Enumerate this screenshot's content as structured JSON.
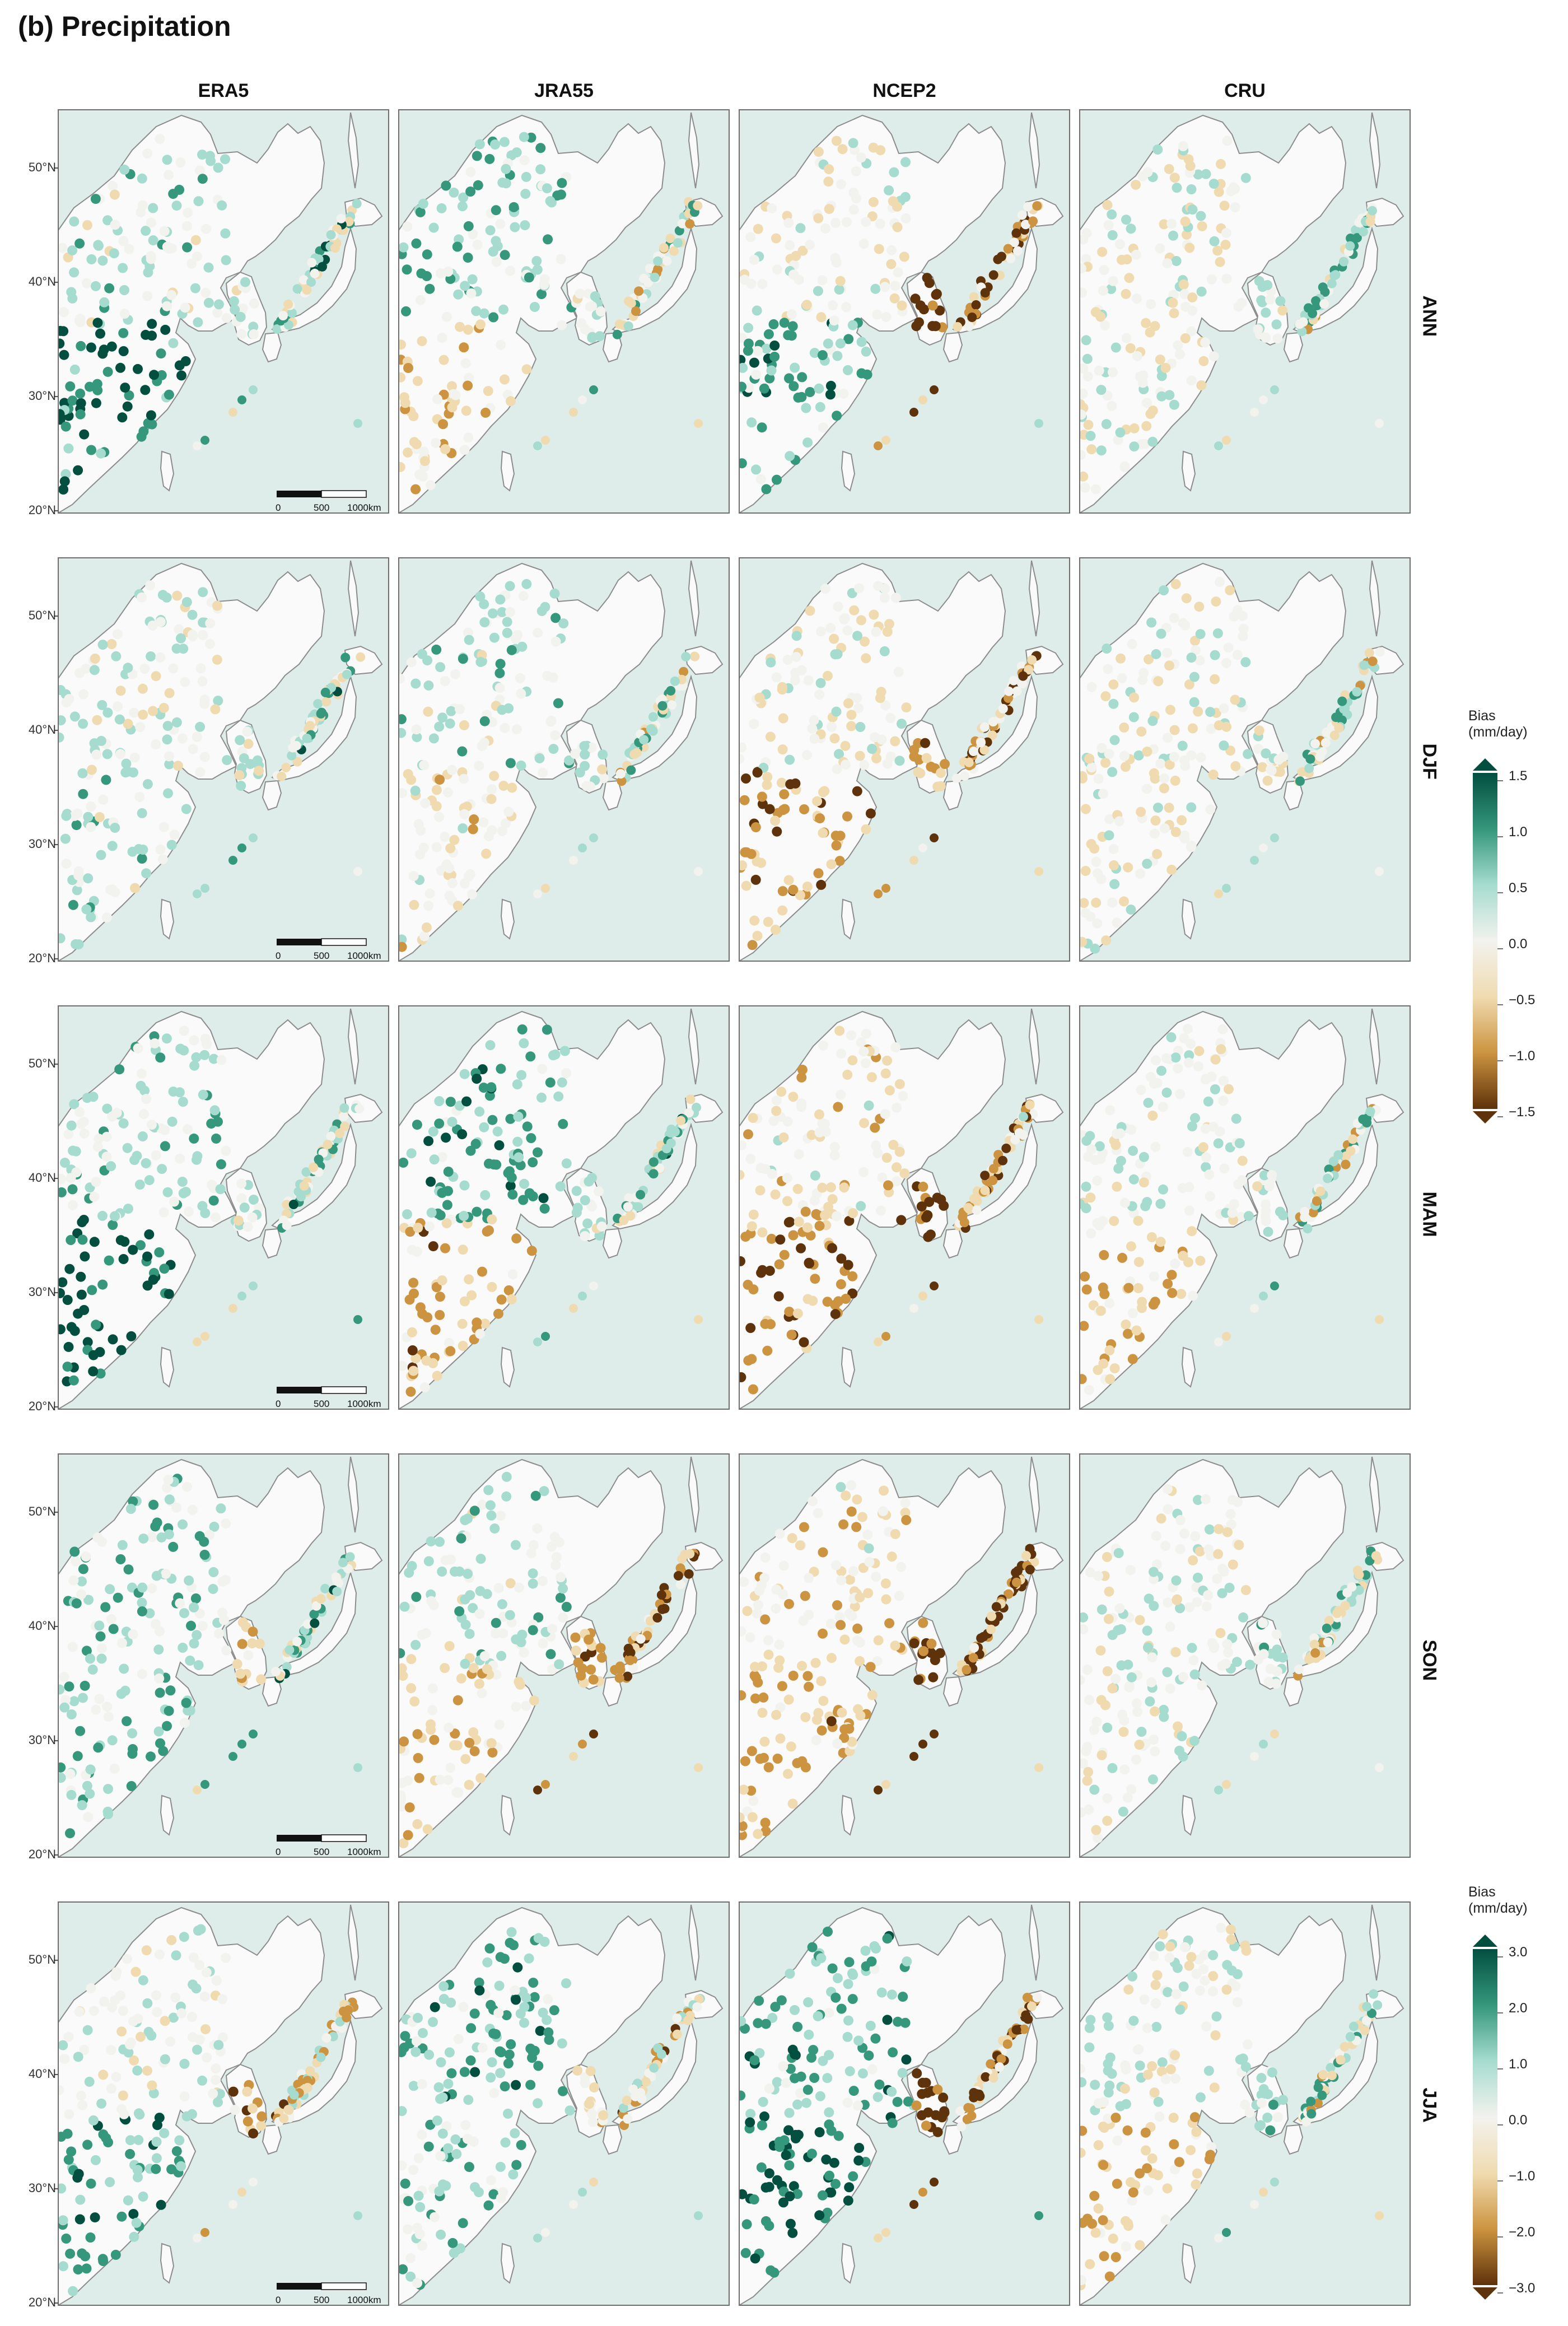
{
  "figure": {
    "title": "(b) Precipitation",
    "columns": [
      "ERA5",
      "JRA55",
      "NCEP2",
      "CRU"
    ],
    "rows": [
      "ANN",
      "DJF",
      "MAM",
      "SON",
      "JJA"
    ],
    "latitude_labels": [
      "50°N",
      "40°N",
      "30°N",
      "20°N"
    ],
    "scale_bar": {
      "labels": [
        "0",
        "500",
        "1000km"
      ],
      "shown_in_column": "ERA5"
    },
    "colorbars": [
      {
        "title_line1": "Bias",
        "title_line2": "(mm/day)",
        "applies_to_rows": [
          "ANN",
          "DJF",
          "MAM",
          "SON"
        ],
        "ticks": [
          "1.5",
          "1.0",
          "0.5",
          "0.0",
          "−0.5",
          "−1.0",
          "−1.5"
        ],
        "min": -1.5,
        "max": 1.5
      },
      {
        "title_line1": "Bias",
        "title_line2": "(mm/day)",
        "applies_to_rows": [
          "JJA"
        ],
        "ticks": [
          "3.0",
          "2.0",
          "1.0",
          "0.0",
          "−1.0",
          "−2.0",
          "−3.0"
        ],
        "min": -3.0,
        "max": 3.0
      }
    ],
    "colors": {
      "ocean": "#deecea",
      "land": "#fafafa",
      "coast": "#8c8c8c",
      "frame": "#6e6e6e",
      "wet_strong": "#024f40",
      "wet_mid": "#35977c",
      "wet_light": "#a6dccf",
      "neutral": "#f2f2ee",
      "dry_light": "#f0dbb0",
      "dry_mid": "#cc9440",
      "dry_strong": "#5e320a"
    }
  },
  "chart_data": {
    "type": "map-scatter",
    "variable": "Precipitation",
    "units": "mm/day",
    "regions": [
      "China",
      "Korea",
      "Japan"
    ],
    "panels_summary": [
      {
        "row": "ANN",
        "ERA5": "wet bias in southern China, mixed near Korea/Japan",
        "JRA55": "dry bias in southeast China, wet bias in northeast",
        "NCEP2": "strong dry bias over Korea and Japan, wet in south China",
        "CRU": "near-neutral inland, mixed coastal"
      },
      {
        "row": "DJF",
        "ERA5": "near-neutral, wet-dry mix in Japan",
        "JRA55": "slight dry in central China, mixed Japan",
        "NCEP2": "dry bias in southern China and Japan",
        "CRU": "near-neutral"
      },
      {
        "row": "MAM",
        "ERA5": "strong wet bias in southern China",
        "JRA55": "dry center and wet south in China",
        "NCEP2": "strong dry bias in south China and Korea",
        "CRU": "moderate dry in southeast China"
      },
      {
        "row": "SON",
        "ERA5": "mild wet bias, dry spots in Korea",
        "JRA55": "dry bias in Korea and Japan",
        "NCEP2": "strong dry bias over Korea and Japan",
        "CRU": "near-neutral, mixed Japan"
      },
      {
        "row": "JJA",
        "ERA5": "wet south China, dry Korea",
        "JRA55": "wet bias widely, dry south China",
        "NCEP2": "strong wet south China, strong dry Korea",
        "CRU": "mixed, dry southeast China"
      }
    ]
  }
}
